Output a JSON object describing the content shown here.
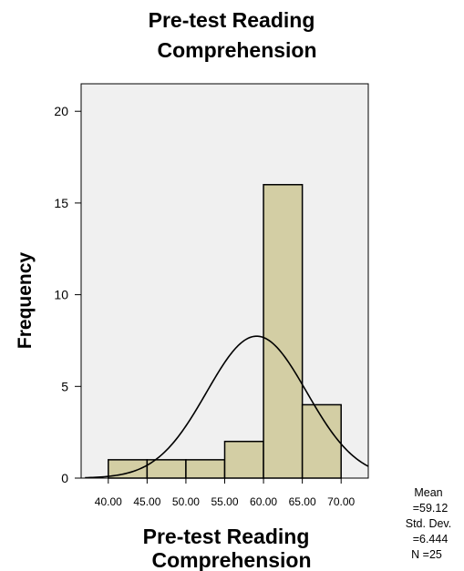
{
  "chart_data": {
    "type": "bar",
    "subtype": "histogram",
    "title": [
      "Pre-test Reading",
      "Comprehension"
    ],
    "xlabel": [
      "Pre-test Reading",
      "Comprehension"
    ],
    "ylabel": "Frequency",
    "bins": [
      {
        "from": 40.0,
        "to": 45.0,
        "count": 1
      },
      {
        "from": 45.0,
        "to": 50.0,
        "count": 1
      },
      {
        "from": 50.0,
        "to": 55.0,
        "count": 1
      },
      {
        "from": 55.0,
        "to": 60.0,
        "count": 2
      },
      {
        "from": 60.0,
        "to": 65.0,
        "count": 16
      },
      {
        "from": 65.0,
        "to": 70.0,
        "count": 4
      }
    ],
    "x_ticks": [
      "40.00",
      "45.00",
      "50.00",
      "55.00",
      "60.00",
      "65.00",
      "70.00"
    ],
    "y_ticks": [
      "0",
      "5",
      "10",
      "15",
      "20"
    ],
    "xlim": [
      36.5,
      73.5
    ],
    "ylim": [
      0,
      21.5
    ],
    "normal_curve": {
      "mean": 59.12,
      "std": 6.444,
      "n": 25,
      "bin_width": 5
    },
    "statistics": [
      "Mean",
      "=59.12",
      "Std. Dev.",
      "=6.444",
      "N =25"
    ],
    "grid": false,
    "colors": {
      "plot_background": "#f0f0f0",
      "bar_fill": "#d3cea4",
      "bar_stroke": "#000000",
      "curve": "#000000"
    }
  }
}
